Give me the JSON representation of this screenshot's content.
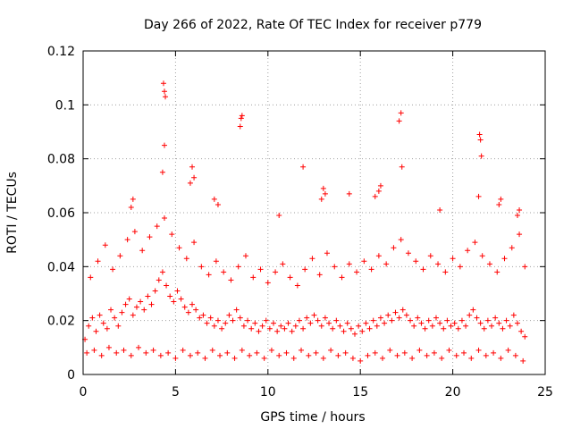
{
  "chart_data": {
    "type": "scatter",
    "title": "Day 266 of 2022, Rate Of TEC Index for receiver p779",
    "xlabel": "GPS time / hours",
    "ylabel": "ROTI / TECUs",
    "xlim": [
      0,
      25
    ],
    "ylim": [
      0,
      0.12
    ],
    "xticks": [
      0,
      5,
      10,
      15,
      20,
      25
    ],
    "xtick_labels": [
      "0",
      "5",
      "10",
      "15",
      "20",
      "25"
    ],
    "yticks": [
      0,
      0.02,
      0.04,
      0.06,
      0.08,
      0.1,
      0.12
    ],
    "ytick_labels": [
      "0",
      "0.02",
      "0.04",
      "0.06",
      "0.08",
      "0.1",
      "0.12"
    ],
    "grid": true,
    "marker": "+",
    "color": "#ff0000",
    "series": [
      {
        "name": "ROTI",
        "x": [
          0.1,
          0.3,
          0.5,
          0.7,
          0.9,
          1.1,
          1.3,
          1.5,
          1.7,
          1.9,
          2.1,
          2.3,
          2.5,
          2.7,
          2.9,
          3.1,
          3.3,
          3.5,
          3.7,
          3.9,
          4.1,
          4.3,
          4.5,
          4.7,
          4.9,
          5.1,
          5.3,
          5.5,
          5.7,
          5.9,
          6.1,
          6.3,
          6.5,
          6.7,
          6.9,
          7.1,
          7.3,
          7.5,
          7.7,
          7.9,
          8.1,
          8.3,
          8.5,
          8.7,
          8.9,
          9.1,
          9.3,
          9.5,
          9.7,
          9.9,
          10.1,
          10.3,
          10.5,
          10.7,
          10.9,
          11.1,
          11.3,
          11.5,
          11.7,
          11.9,
          12.1,
          12.3,
          12.5,
          12.7,
          12.9,
          13.1,
          13.3,
          13.5,
          13.7,
          13.9,
          14.1,
          14.3,
          14.5,
          14.7,
          14.9,
          15.1,
          15.3,
          15.5,
          15.7,
          15.9,
          16.1,
          16.3,
          16.5,
          16.7,
          16.9,
          17.1,
          17.3,
          17.5,
          17.7,
          17.9,
          18.1,
          18.3,
          18.5,
          18.7,
          18.9,
          19.1,
          19.3,
          19.5,
          19.7,
          19.9,
          20.1,
          20.3,
          20.5,
          20.7,
          20.9,
          21.1,
          21.3,
          21.5,
          21.7,
          21.9,
          22.1,
          22.3,
          22.5,
          22.7,
          22.9,
          23.1,
          23.3,
          23.5,
          23.7,
          23.9,
          0.2,
          0.6,
          1.0,
          1.4,
          1.8,
          2.2,
          2.6,
          3.0,
          3.4,
          3.8,
          4.2,
          4.6,
          5.0,
          5.4,
          5.8,
          6.2,
          6.6,
          7.0,
          7.4,
          7.8,
          8.2,
          8.6,
          9.0,
          9.4,
          9.8,
          10.2,
          10.6,
          11.0,
          11.4,
          11.8,
          12.2,
          12.6,
          13.0,
          13.4,
          13.8,
          14.2,
          14.6,
          15.0,
          15.4,
          15.8,
          16.2,
          16.6,
          17.0,
          17.4,
          17.8,
          18.2,
          18.6,
          19.0,
          19.4,
          19.8,
          20.2,
          20.6,
          21.0,
          21.4,
          21.8,
          22.2,
          22.6,
          23.0,
          23.4,
          23.8,
          0.4,
          0.8,
          1.2,
          1.6,
          2.0,
          2.4,
          2.8,
          3.2,
          3.6,
          4.0,
          4.4,
          4.8,
          5.2,
          5.6,
          6.0,
          6.4,
          6.8,
          7.2,
          7.6,
          8.0,
          8.4,
          8.8,
          9.2,
          9.6,
          10.0,
          10.4,
          10.8,
          11.2,
          11.6,
          12.0,
          12.4,
          12.8,
          13.2,
          13.6,
          14.0,
          14.4,
          14.8,
          15.2,
          15.6,
          16.0,
          16.4,
          16.8,
          17.2,
          17.6,
          18.0,
          18.4,
          18.8,
          19.2,
          19.6,
          20.0,
          20.4,
          20.8,
          21.2,
          21.6,
          22.0,
          22.4,
          22.8,
          23.2,
          23.6,
          23.9,
          4.35,
          4.4,
          4.45,
          4.4,
          4.3,
          8.6,
          8.55,
          8.5,
          17.2,
          17.1,
          17.25,
          21.45,
          21.5,
          21.55,
          21.4,
          5.9,
          6.0,
          5.8,
          13.0,
          13.1,
          12.9,
          16.1,
          16.0,
          11.9,
          2.7,
          2.6,
          22.6,
          22.5,
          23.6,
          23.5,
          15.8,
          14.4,
          7.1,
          7.3,
          19.3,
          10.6
        ],
        "y": [
          0.013,
          0.018,
          0.021,
          0.016,
          0.022,
          0.019,
          0.017,
          0.024,
          0.021,
          0.018,
          0.023,
          0.026,
          0.028,
          0.022,
          0.025,
          0.027,
          0.024,
          0.029,
          0.026,
          0.031,
          0.035,
          0.038,
          0.033,
          0.029,
          0.027,
          0.031,
          0.028,
          0.025,
          0.023,
          0.026,
          0.024,
          0.021,
          0.022,
          0.019,
          0.021,
          0.018,
          0.02,
          0.017,
          0.019,
          0.022,
          0.02,
          0.024,
          0.021,
          0.018,
          0.02,
          0.017,
          0.019,
          0.016,
          0.018,
          0.02,
          0.017,
          0.019,
          0.016,
          0.018,
          0.017,
          0.019,
          0.016,
          0.018,
          0.02,
          0.017,
          0.021,
          0.019,
          0.022,
          0.02,
          0.018,
          0.021,
          0.019,
          0.017,
          0.02,
          0.018,
          0.016,
          0.019,
          0.017,
          0.015,
          0.018,
          0.016,
          0.019,
          0.017,
          0.02,
          0.018,
          0.021,
          0.019,
          0.022,
          0.02,
          0.023,
          0.021,
          0.024,
          0.022,
          0.02,
          0.018,
          0.021,
          0.019,
          0.017,
          0.02,
          0.018,
          0.021,
          0.019,
          0.017,
          0.02,
          0.018,
          0.019,
          0.017,
          0.02,
          0.018,
          0.022,
          0.024,
          0.021,
          0.019,
          0.017,
          0.02,
          0.018,
          0.021,
          0.019,
          0.017,
          0.02,
          0.018,
          0.022,
          0.019,
          0.016,
          0.014,
          0.008,
          0.009,
          0.007,
          0.01,
          0.008,
          0.009,
          0.007,
          0.01,
          0.008,
          0.009,
          0.007,
          0.008,
          0.006,
          0.009,
          0.007,
          0.008,
          0.006,
          0.009,
          0.007,
          0.008,
          0.006,
          0.009,
          0.007,
          0.008,
          0.006,
          0.009,
          0.007,
          0.008,
          0.006,
          0.009,
          0.007,
          0.008,
          0.006,
          0.009,
          0.007,
          0.008,
          0.006,
          0.005,
          0.007,
          0.008,
          0.006,
          0.009,
          0.007,
          0.008,
          0.006,
          0.009,
          0.007,
          0.008,
          0.006,
          0.009,
          0.007,
          0.008,
          0.006,
          0.009,
          0.007,
          0.008,
          0.006,
          0.009,
          0.007,
          0.005,
          0.036,
          0.042,
          0.048,
          0.039,
          0.044,
          0.05,
          0.053,
          0.046,
          0.051,
          0.055,
          0.058,
          0.052,
          0.047,
          0.043,
          0.049,
          0.04,
          0.037,
          0.042,
          0.038,
          0.035,
          0.04,
          0.044,
          0.036,
          0.039,
          0.034,
          0.038,
          0.041,
          0.036,
          0.033,
          0.039,
          0.043,
          0.037,
          0.045,
          0.04,
          0.036,
          0.041,
          0.038,
          0.042,
          0.039,
          0.044,
          0.041,
          0.047,
          0.05,
          0.045,
          0.042,
          0.039,
          0.044,
          0.041,
          0.038,
          0.043,
          0.04,
          0.046,
          0.049,
          0.044,
          0.041,
          0.038,
          0.043,
          0.047,
          0.052,
          0.04,
          0.108,
          0.105,
          0.103,
          0.085,
          0.075,
          0.096,
          0.095,
          0.092,
          0.097,
          0.094,
          0.077,
          0.089,
          0.087,
          0.081,
          0.066,
          0.077,
          0.073,
          0.071,
          0.069,
          0.067,
          0.065,
          0.07,
          0.068,
          0.077,
          0.065,
          0.062,
          0.065,
          0.063,
          0.061,
          0.059,
          0.066,
          0.067,
          0.065,
          0.063,
          0.061,
          0.059
        ]
      }
    ]
  }
}
